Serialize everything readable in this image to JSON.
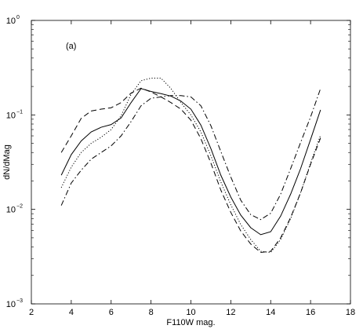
{
  "chart_data": {
    "type": "line",
    "panel_label": "(a)",
    "xlabel": "F110W mag.",
    "ylabel": "dN/dMag",
    "xlim": [
      2,
      18
    ],
    "ylim": [
      0.001,
      1
    ],
    "yscale": "log",
    "xticks": [
      2,
      4,
      6,
      8,
      10,
      12,
      14,
      16,
      18
    ],
    "xtick_labels": [
      "2",
      "4",
      "6",
      "8",
      "10",
      "12",
      "14",
      "16",
      "18"
    ],
    "yticks": [
      {
        "value": 0.001,
        "base": "10",
        "exp": "−3"
      },
      {
        "value": 0.01,
        "base": "10",
        "exp": "−2"
      },
      {
        "value": 0.1,
        "base": "10",
        "exp": "−1"
      },
      {
        "value": 1,
        "base": "10",
        "exp": "0"
      }
    ],
    "grid": false,
    "x": [
      3.5,
      4.0,
      4.5,
      5.0,
      5.5,
      6.0,
      6.5,
      7.0,
      7.5,
      8.0,
      8.5,
      9.0,
      9.5,
      10.0,
      10.5,
      11.0,
      11.5,
      12.0,
      12.5,
      13.0,
      13.5,
      14.0,
      14.5,
      15.0,
      15.5,
      16.0,
      16.5
    ],
    "series": [
      {
        "style": "solid",
        "values": [
          0.023,
          0.038,
          0.053,
          0.066,
          0.074,
          0.079,
          0.093,
          0.135,
          0.19,
          0.177,
          0.168,
          0.158,
          0.14,
          0.115,
          0.078,
          0.044,
          0.023,
          0.0135,
          0.0087,
          0.0064,
          0.0054,
          0.0058,
          0.0085,
          0.0145,
          0.027,
          0.055,
          0.113
        ]
      },
      {
        "style": "dashed",
        "values": [
          0.04,
          0.06,
          0.092,
          0.11,
          0.115,
          0.119,
          0.135,
          0.17,
          0.192,
          0.175,
          0.155,
          0.135,
          0.115,
          0.088,
          0.056,
          0.031,
          0.016,
          0.0093,
          0.0059,
          0.0043,
          0.0035,
          0.0036,
          0.005,
          0.0082,
          0.015,
          0.03,
          0.057
        ]
      },
      {
        "style": "dotted",
        "values": [
          0.017,
          0.028,
          0.04,
          0.05,
          0.058,
          0.07,
          0.098,
          0.165,
          0.23,
          0.245,
          0.245,
          0.19,
          0.135,
          0.1,
          0.066,
          0.037,
          0.0195,
          0.0112,
          0.0069,
          0.0048,
          0.0036,
          0.0035,
          0.0048,
          0.008,
          0.015,
          0.031,
          0.061
        ]
      },
      {
        "style": "dashdot",
        "values": [
          0.011,
          0.019,
          0.026,
          0.034,
          0.04,
          0.047,
          0.06,
          0.085,
          0.125,
          0.15,
          0.155,
          0.16,
          0.16,
          0.155,
          0.125,
          0.077,
          0.041,
          0.022,
          0.0125,
          0.0088,
          0.0078,
          0.0091,
          0.0145,
          0.027,
          0.051,
          0.095,
          0.19
        ]
      }
    ]
  }
}
